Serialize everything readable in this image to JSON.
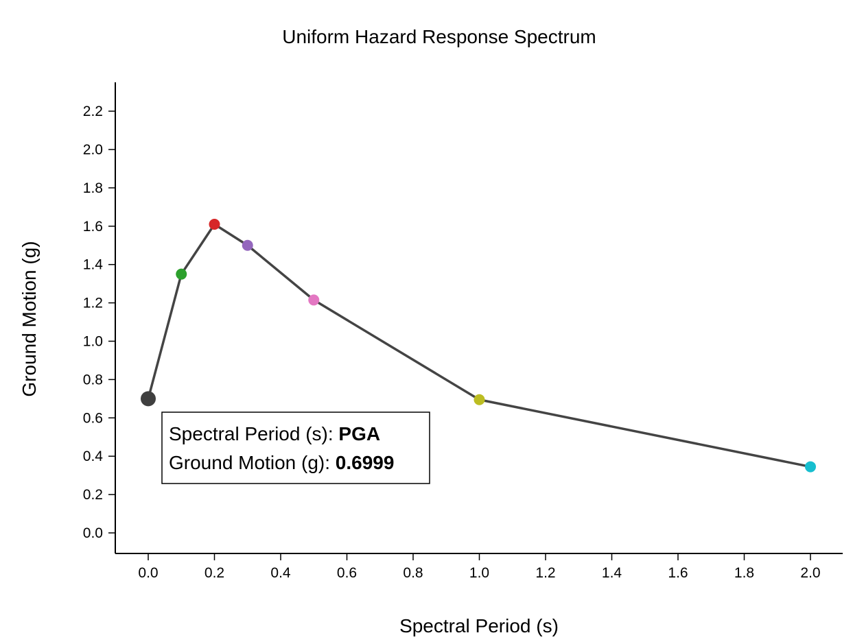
{
  "chart_data": {
    "type": "line",
    "title": "Uniform Hazard Response Spectrum",
    "xlabel": "Spectral Period (s)",
    "ylabel": "Ground Motion (g)",
    "xlim": [
      -0.1,
      2.1
    ],
    "ylim": [
      -0.1,
      2.35
    ],
    "xticks": [
      0.0,
      0.2,
      0.4,
      0.6,
      0.8,
      1.0,
      1.2,
      1.4,
      1.6,
      1.8,
      2.0
    ],
    "xtick_labels": [
      "0.0",
      "0.2",
      "0.4",
      "0.6",
      "0.8",
      "1.0",
      "1.2",
      "1.4",
      "1.6",
      "1.8",
      "2.0"
    ],
    "yticks": [
      0.0,
      0.2,
      0.4,
      0.6,
      0.8,
      1.0,
      1.2,
      1.4,
      1.6,
      1.8,
      2.0,
      2.2
    ],
    "ytick_labels": [
      "0.0",
      "0.2",
      "0.4",
      "0.6",
      "0.8",
      "1.0",
      "1.2",
      "1.4",
      "1.6",
      "1.8",
      "2.0",
      "2.2"
    ],
    "grid": false,
    "line_color": "#444444",
    "series": [
      {
        "x": [
          0.0,
          0.1,
          0.2,
          0.3,
          0.5,
          1.0,
          2.0
        ],
        "y": [
          0.6999,
          1.35,
          1.61,
          1.5,
          1.215,
          0.695,
          0.345
        ],
        "point_colors": [
          "#3f3f3f",
          "#2ca02c",
          "#d62728",
          "#9467bd",
          "#e377c2",
          "#bcbd22",
          "#17becf"
        ],
        "highlighted_index": 0
      }
    ],
    "tooltip": {
      "period_label": "Spectral Period (s): ",
      "period_value": "PGA",
      "motion_label": "Ground Motion (g): ",
      "motion_value": "0.6999"
    }
  }
}
